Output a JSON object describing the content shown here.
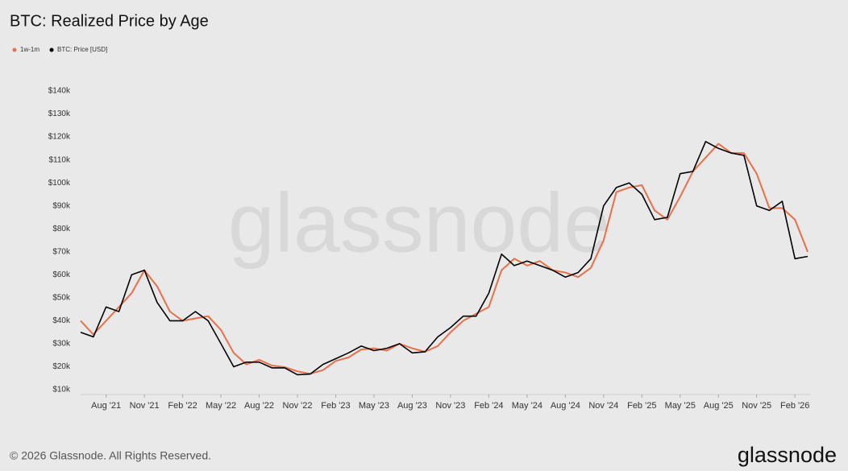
{
  "chart_data": {
    "type": "line",
    "title": "BTC: Realized Price by Age",
    "watermark": "glassnode",
    "footer": "© 2026 Glassnode. All Rights Reserved.",
    "logo": "glassnode",
    "categories": [
      null,
      null,
      "Aug '21",
      null,
      null,
      "Nov '21",
      null,
      null,
      "Feb '22",
      null,
      null,
      "May '22",
      null,
      null,
      "Aug '22",
      null,
      null,
      "Nov '22",
      null,
      null,
      "Feb '23",
      null,
      null,
      "May '23",
      null,
      null,
      "Aug '23",
      null,
      null,
      "Nov '23",
      null,
      null,
      "Feb '24",
      null,
      null,
      "May '24",
      null,
      null,
      "Aug '24",
      null,
      null,
      "Nov '24",
      null,
      null,
      "Feb '25",
      null,
      null,
      "May '25",
      null,
      null,
      "Aug '25",
      null,
      null,
      "Nov '25",
      null,
      null,
      "Feb '26",
      null
    ],
    "series": [
      {
        "name": "1w-1m",
        "color": "#e8704a",
        "values": [
          40000,
          34000,
          40000,
          46000,
          52000,
          62000,
          55000,
          44000,
          40000,
          41000,
          42000,
          36000,
          26000,
          21000,
          23000,
          20500,
          19800,
          18000,
          16900,
          18500,
          22500,
          24000,
          27500,
          28000,
          27000,
          30000,
          28000,
          26500,
          29000,
          35000,
          40000,
          43000,
          46000,
          62000,
          67000,
          64000,
          66000,
          62000,
          61000,
          59000,
          63000,
          75000,
          96000,
          98000,
          99000,
          88000,
          84000,
          94000,
          105000,
          111000,
          117000,
          113000,
          113000,
          104000,
          89000,
          89000,
          84000,
          70000
        ]
      },
      {
        "name": "BTC: Price [USD]",
        "color": "#000000",
        "values": [
          35000,
          33000,
          46000,
          44000,
          60000,
          62000,
          48000,
          40000,
          40000,
          44000,
          40000,
          30000,
          20000,
          22000,
          22000,
          19500,
          19500,
          16500,
          16800,
          21000,
          23500,
          26000,
          29000,
          27000,
          28000,
          30000,
          26000,
          26500,
          33000,
          37000,
          42000,
          42000,
          52000,
          69000,
          64000,
          66000,
          64000,
          62000,
          59000,
          61000,
          67000,
          90000,
          98000,
          100000,
          95000,
          84000,
          85000,
          104000,
          105000,
          118000,
          115000,
          113000,
          112000,
          90000,
          88000,
          92000,
          67000,
          68000
        ]
      }
    ],
    "ylim": [
      10000,
      140000
    ],
    "yticks": [
      {
        "value": 10000,
        "label": "$10k"
      },
      {
        "value": 20000,
        "label": "$20k"
      },
      {
        "value": 30000,
        "label": "$30k"
      },
      {
        "value": 40000,
        "label": "$40k"
      },
      {
        "value": 50000,
        "label": "$50k"
      },
      {
        "value": 60000,
        "label": "$60k"
      },
      {
        "value": 70000,
        "label": "$70k"
      },
      {
        "value": 80000,
        "label": "$80k"
      },
      {
        "value": 90000,
        "label": "$90k"
      },
      {
        "value": 100000,
        "label": "$100k"
      },
      {
        "value": 110000,
        "label": "$110k"
      },
      {
        "value": 120000,
        "label": "$120k"
      },
      {
        "value": 130000,
        "label": "$130k"
      },
      {
        "value": 140000,
        "label": "$140k"
      }
    ],
    "grid": false,
    "legend": "top-left"
  }
}
